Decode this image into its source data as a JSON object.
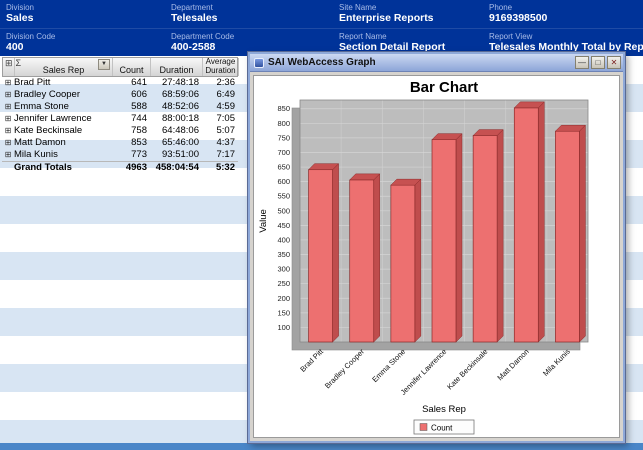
{
  "header": {
    "columns": [
      {
        "label": "Division",
        "value": "Sales",
        "sub_label": "Division Code",
        "sub_value": "400"
      },
      {
        "label": "Department",
        "value": "Telesales",
        "sub_label": "Department Code",
        "sub_value": "400-2588"
      },
      {
        "label": "Site Name",
        "value": "Enterprise Reports",
        "sub_label": "Report Name",
        "sub_value": "Section Detail Report"
      },
      {
        "label": "Phone",
        "value": "9169398500",
        "sub_label": "Report View",
        "sub_value": "Telesales Monthly Total by Rep"
      }
    ]
  },
  "table": {
    "header": {
      "col_rep": "Sales Rep",
      "col_count": "Count",
      "col_duration": "Duration",
      "col_avg": "Average Duration"
    },
    "icons": {
      "expand_all": "⊞",
      "sigma": "Σ",
      "dropdown": "▼",
      "row_expander": "⊞"
    },
    "rows": [
      {
        "name": "Brad Pitt",
        "count": "641",
        "duration": "27:48:18",
        "avg": "2:36"
      },
      {
        "name": "Bradley Cooper",
        "count": "606",
        "duration": "68:59:06",
        "avg": "6:49"
      },
      {
        "name": "Emma Stone",
        "count": "588",
        "duration": "48:52:06",
        "avg": "4:59"
      },
      {
        "name": "Jennifer Lawrence",
        "count": "744",
        "duration": "88:00:18",
        "avg": "7:05"
      },
      {
        "name": "Kate Beckinsale",
        "count": "758",
        "duration": "64:48:06",
        "avg": "5:07"
      },
      {
        "name": "Matt Damon",
        "count": "853",
        "duration": "65:46:00",
        "avg": "4:37"
      },
      {
        "name": "Mila Kunis",
        "count": "773",
        "duration": "93:51:00",
        "avg": "7:17"
      }
    ],
    "totals": {
      "name": "Grand Totals",
      "count": "4963",
      "duration": "458:04:54",
      "avg": "5:32"
    }
  },
  "dialog": {
    "title": "SAI WebAccess Graph",
    "buttons": {
      "minimize": "—",
      "maximize": "□",
      "close": "✕"
    }
  },
  "chart_data": {
    "type": "bar",
    "title": "Bar Chart",
    "categories": [
      "Brad Pitt",
      "Bradley Cooper",
      "Emma Stone",
      "Jennifer Lawrence",
      "Kate Beckinsale",
      "Matt Damon",
      "Mila Kunis"
    ],
    "series": [
      {
        "name": "Count",
        "values": [
          641,
          606,
          588,
          744,
          758,
          853,
          773
        ]
      }
    ],
    "xlabel": "Sales Rep",
    "ylabel": "Value",
    "ylim": [
      50,
      880
    ],
    "yticks_start": 100,
    "yticks_end": 850,
    "yticks_step": 50,
    "grid": true,
    "legend_position": "bottom",
    "bar_color": "#ed7070",
    "bar_top_color": "#c65151",
    "bar_side_color": "#bf4d4d",
    "plot_bg": "#bdbdbd"
  }
}
